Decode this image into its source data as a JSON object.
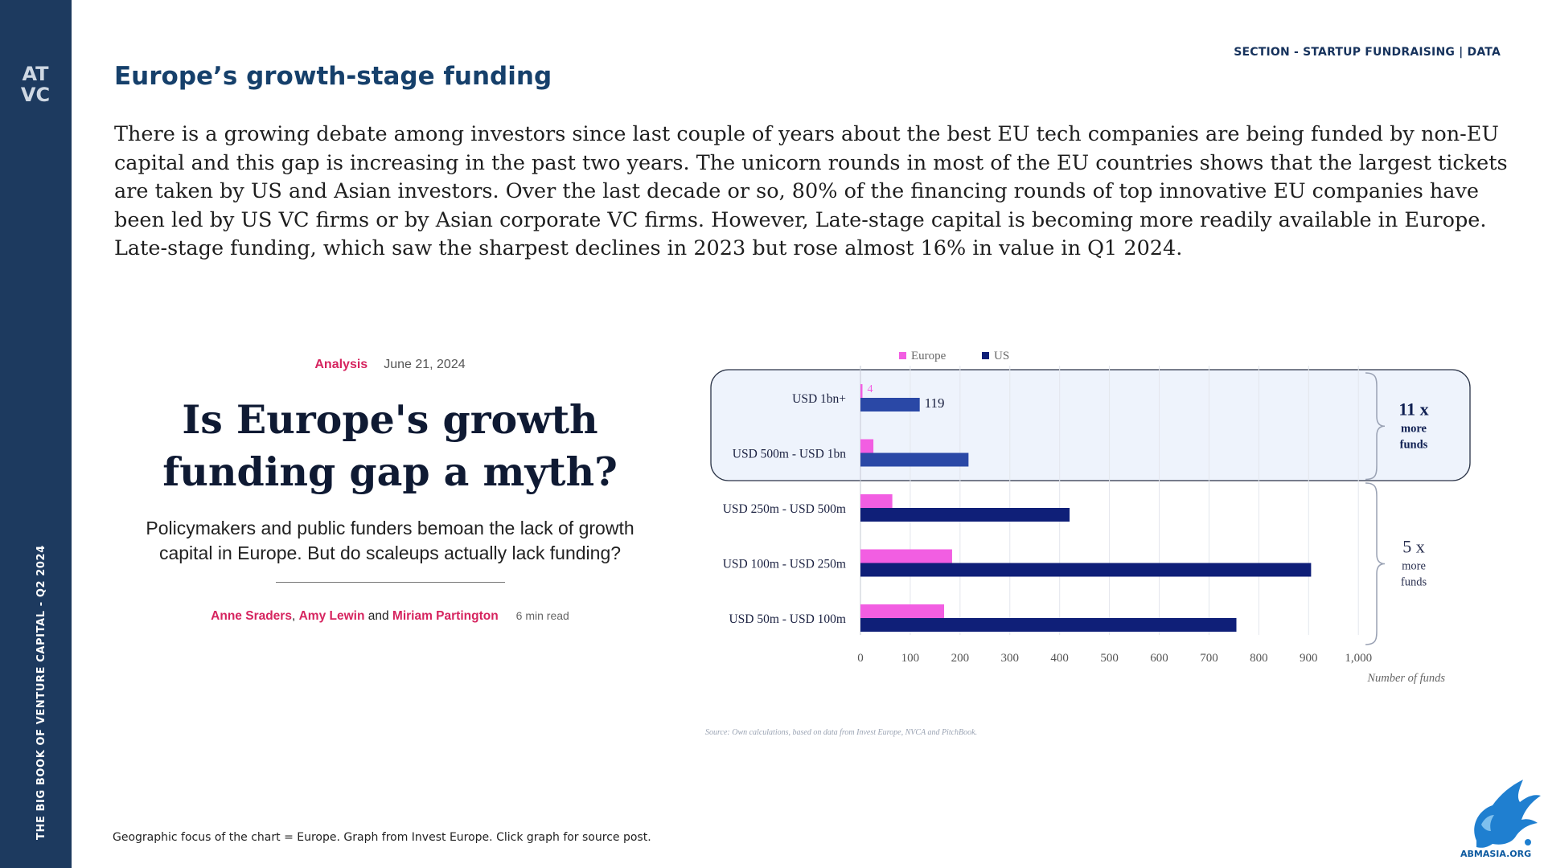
{
  "sidebar": {
    "logo_text": "ATVC",
    "vertical_text": "THE BIG BOOK OF VENTURE CAPITAL - Q2 2024"
  },
  "header": {
    "section_label": "SECTION - STARTUP FUNDRAISING | DATA",
    "title": "Europe’s growth-stage funding"
  },
  "intro": "There is a growing debate among investors since last couple of years about the best EU tech companies are being funded by non-EU capital and this gap is increasing in the past two years. The unicorn rounds in most of the EU countries shows that the largest tickets are taken by US and Asian investors. Over the last decade or so, 80% of the financing rounds of top innovative EU companies have been led by US VC firms or by Asian corporate VC firms. However, Late-stage capital is becoming more readily available in Europe. Late-stage funding, which saw the sharpest declines in 2023 but rose almost 16% in value in Q1 2024.",
  "article": {
    "category": "Analysis",
    "date": "June 21, 2024",
    "headline_line1": "Is Europe's growth",
    "headline_line2": "funding gap a myth?",
    "subtitle_line1": "Policymakers and public funders bemoan the lack of growth",
    "subtitle_line2": "capital in Europe. But do scaleups actually lack funding?",
    "author1": "Anne Sraders",
    "sep1": ", ",
    "author2": "Amy Lewin",
    "sep2": " and ",
    "author3": "Miriam Partington",
    "read_time": "6 min read"
  },
  "chart_data": {
    "type": "bar",
    "orientation": "horizontal",
    "categories": [
      "USD 1bn+",
      "USD 500m - USD 1bn",
      "USD 250m - USD 500m",
      "USD 100m - USD 250m",
      "USD 50m - USD 100m"
    ],
    "series": [
      {
        "name": "Europe",
        "values": [
          4,
          26,
          64,
          184,
          168
        ],
        "color": "#f25ee2"
      },
      {
        "name": "US",
        "values": [
          119,
          217,
          420,
          905,
          755
        ],
        "color": "#0f1f78"
      }
    ],
    "data_labels": [
      {
        "category": "USD 1bn+",
        "series": "Europe",
        "text": "4"
      },
      {
        "category": "USD 1bn+",
        "series": "US",
        "text": "119"
      }
    ],
    "xlim": [
      0,
      1000
    ],
    "xticks": [
      "0",
      "100",
      "200",
      "300",
      "400",
      "500",
      "600",
      "700",
      "800",
      "900",
      "1,000"
    ],
    "xlabel": "Number of funds",
    "legend_position": "top",
    "grid": true,
    "annotations": [
      {
        "group": [
          "USD 1bn+",
          "USD 500m - USD 1bn"
        ],
        "line1": "11 x",
        "line2": "more",
        "line3": "funds"
      },
      {
        "group": [
          "USD 250m - USD 500m",
          "USD 100m - USD 250m",
          "USD 50m - USD 100m"
        ],
        "line1": "5 x",
        "line2": "more",
        "line3": "funds"
      }
    ],
    "source": "Source: Own calculations, based on data from Invest Europe, NVCA and PitchBook."
  },
  "footer": "Geographic focus of the chart = Europe. Graph from Invest Europe. Click graph for source post.",
  "brand_logo_text": "ABMASIA.ORG",
  "colors": {
    "sidebar": "#1d3a5f",
    "title": "#16406b",
    "accent_pink": "#d6245f",
    "europe": "#f25ee2",
    "us": "#0f1f78",
    "highlight_box": "#eef3fc"
  }
}
